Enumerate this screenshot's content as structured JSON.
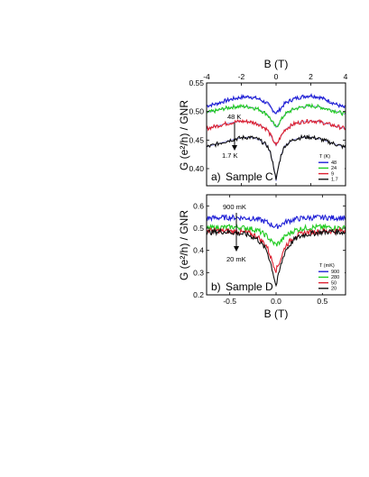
{
  "colors": {
    "blue": "#1f1fd6",
    "green": "#22cc22",
    "red": "#dd1f2f",
    "black": "#111111",
    "fit": "#8a8ae0"
  },
  "chart_data": [
    {
      "type": "line",
      "panel_label": "a)",
      "sample_label": "Sample C",
      "xlabel": "B (T)",
      "ylabel": "G (e²/h) / GNR",
      "xlim": [
        -4,
        4
      ],
      "ylim": [
        0.37,
        0.55
      ],
      "x_ticks": [
        "-4",
        "-2",
        "0",
        "2",
        "4"
      ],
      "y_ticks": [
        "0.40",
        "0.45",
        "0.50",
        "0.55"
      ],
      "legend_title": "T (K)",
      "legend_position": "bottom-right",
      "annotation_top": "48 K",
      "annotation_bottom": "1.7 K",
      "series": [
        {
          "name": "48",
          "color": "#1f1fd6",
          "x": [
            -4,
            -3.5,
            -3,
            -2.5,
            -2,
            -1.5,
            -1,
            -0.5,
            -0.2,
            0,
            0.2,
            0.5,
            1,
            1.5,
            2,
            2.5,
            3,
            3.5,
            4
          ],
          "y": [
            0.51,
            0.513,
            0.518,
            0.522,
            0.525,
            0.526,
            0.522,
            0.514,
            0.503,
            0.497,
            0.503,
            0.514,
            0.522,
            0.526,
            0.528,
            0.525,
            0.519,
            0.512,
            0.506
          ]
        },
        {
          "name": "24",
          "color": "#22cc22",
          "x": [
            -4,
            -3.5,
            -3,
            -2.5,
            -2,
            -1.5,
            -1,
            -0.5,
            -0.2,
            0,
            0.2,
            0.5,
            1,
            1.5,
            2,
            2.5,
            3,
            3.5,
            4
          ],
          "y": [
            0.498,
            0.501,
            0.505,
            0.508,
            0.509,
            0.508,
            0.504,
            0.495,
            0.481,
            0.472,
            0.481,
            0.495,
            0.504,
            0.508,
            0.51,
            0.508,
            0.504,
            0.5,
            0.495
          ]
        },
        {
          "name": "9",
          "color": "#dd1f2f",
          "x": [
            -4,
            -3.5,
            -3,
            -2.5,
            -2,
            -1.5,
            -1,
            -0.5,
            -0.2,
            0,
            0.2,
            0.5,
            1,
            1.5,
            2,
            2.5,
            3,
            3.5,
            4
          ],
          "y": [
            0.47,
            0.474,
            0.478,
            0.481,
            0.483,
            0.482,
            0.478,
            0.468,
            0.452,
            0.44,
            0.452,
            0.468,
            0.478,
            0.482,
            0.484,
            0.482,
            0.478,
            0.474,
            0.47
          ]
        },
        {
          "name": "1.7",
          "color": "#111111",
          "x": [
            -4,
            -3.5,
            -3,
            -2.5,
            -2,
            -1.5,
            -1,
            -0.5,
            -0.3,
            -0.1,
            0,
            0.1,
            0.3,
            0.5,
            1,
            1.5,
            2,
            2.5,
            3,
            3.5,
            4
          ],
          "y": [
            0.438,
            0.442,
            0.447,
            0.451,
            0.454,
            0.455,
            0.451,
            0.44,
            0.425,
            0.398,
            0.378,
            0.398,
            0.425,
            0.44,
            0.451,
            0.455,
            0.455,
            0.452,
            0.447,
            0.442,
            0.437
          ]
        }
      ]
    },
    {
      "type": "line",
      "panel_label": "b)",
      "sample_label": "Sample D",
      "xlabel": "B (T)",
      "ylabel": "G (e²/h) / GNR",
      "xlim": [
        -0.75,
        0.75
      ],
      "ylim": [
        0.2,
        0.65
      ],
      "x_ticks": [
        "-0.5",
        "0.0",
        "0.5"
      ],
      "y_ticks": [
        "0.2",
        "0.3",
        "0.4",
        "0.5",
        "0.6"
      ],
      "legend_title": "T (mK)",
      "legend_position": "bottom-right",
      "annotation_top": "900 mK",
      "annotation_bottom": "20 mK",
      "series": [
        {
          "name": "900",
          "color": "#1f1fd6",
          "x": [
            -0.75,
            -0.6,
            -0.45,
            -0.3,
            -0.2,
            -0.1,
            -0.05,
            0,
            0.05,
            0.1,
            0.2,
            0.3,
            0.45,
            0.6,
            0.75
          ],
          "y": [
            0.545,
            0.547,
            0.548,
            0.545,
            0.54,
            0.527,
            0.515,
            0.505,
            0.515,
            0.527,
            0.54,
            0.545,
            0.548,
            0.547,
            0.545
          ]
        },
        {
          "name": "280",
          "color": "#22cc22",
          "x": [
            -0.75,
            -0.6,
            -0.45,
            -0.3,
            -0.2,
            -0.1,
            -0.05,
            0,
            0.05,
            0.1,
            0.2,
            0.3,
            0.45,
            0.6,
            0.75
          ],
          "y": [
            0.5,
            0.503,
            0.505,
            0.5,
            0.49,
            0.465,
            0.44,
            0.425,
            0.44,
            0.465,
            0.49,
            0.5,
            0.505,
            0.503,
            0.5
          ]
        },
        {
          "name": "50",
          "color": "#dd1f2f",
          "x": [
            -0.75,
            -0.6,
            -0.45,
            -0.3,
            -0.2,
            -0.1,
            -0.05,
            0,
            0.05,
            0.1,
            0.2,
            0.3,
            0.45,
            0.6,
            0.75
          ],
          "y": [
            0.49,
            0.487,
            0.485,
            0.478,
            0.462,
            0.42,
            0.36,
            0.31,
            0.36,
            0.42,
            0.462,
            0.478,
            0.485,
            0.487,
            0.49
          ]
        },
        {
          "name": "20",
          "color": "#111111",
          "x": [
            -0.75,
            -0.6,
            -0.45,
            -0.3,
            -0.2,
            -0.1,
            -0.05,
            0,
            0.05,
            0.1,
            0.2,
            0.3,
            0.45,
            0.6,
            0.75
          ],
          "y": [
            0.48,
            0.485,
            0.48,
            0.47,
            0.45,
            0.4,
            0.33,
            0.24,
            0.33,
            0.4,
            0.45,
            0.47,
            0.48,
            0.485,
            0.48
          ]
        }
      ]
    }
  ]
}
